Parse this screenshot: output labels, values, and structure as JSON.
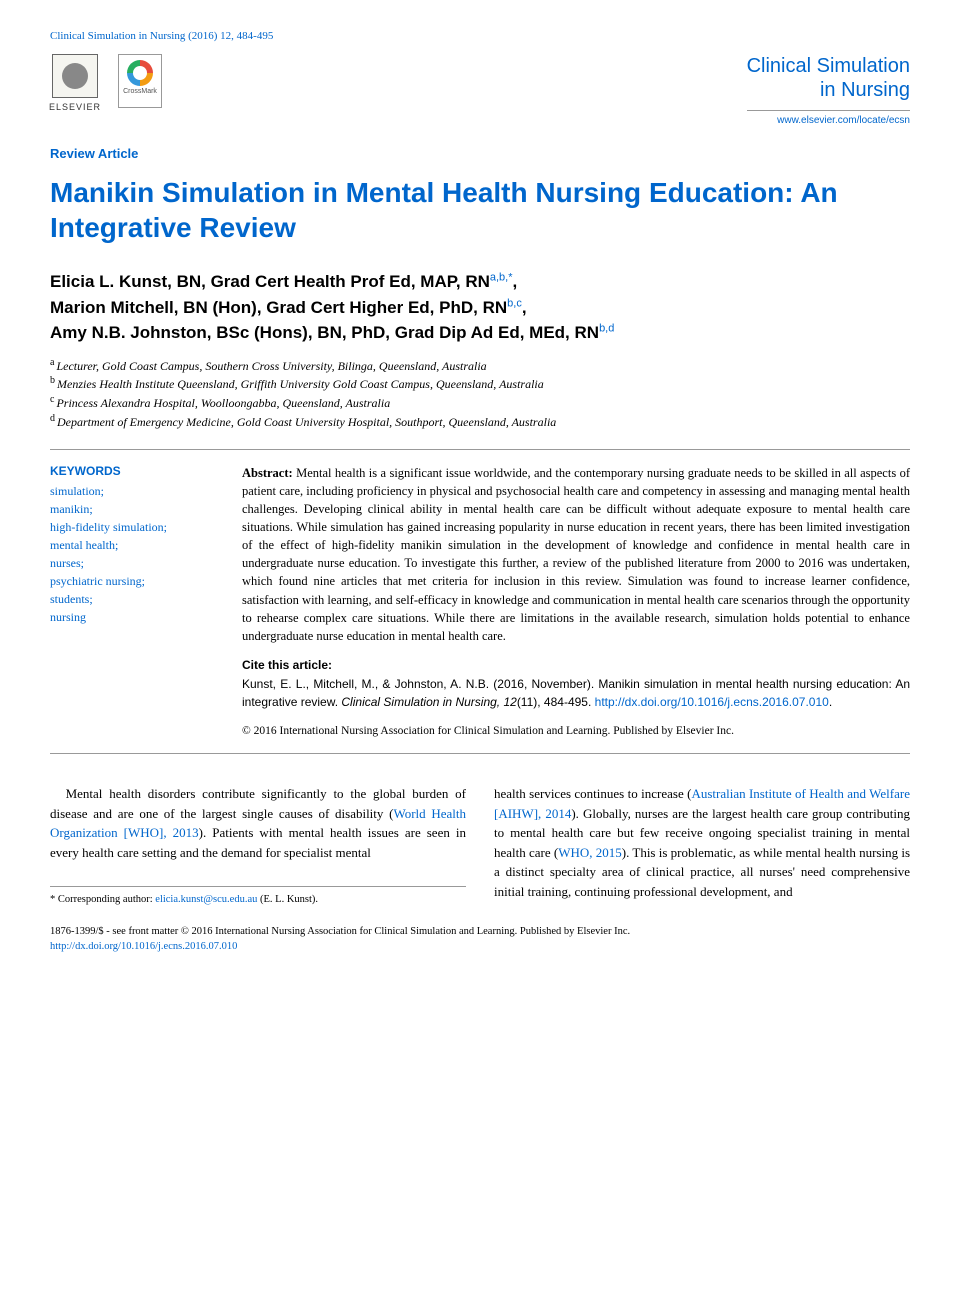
{
  "header": {
    "citation": "Clinical Simulation in Nursing (2016) 12, 484-495",
    "elsevier_label": "ELSEVIER",
    "crossmark_label": "CrossMark",
    "journal_title_line1": "Clinical Simulation",
    "journal_title_line2": "in Nursing",
    "journal_url": "www.elsevier.com/locate/ecsn"
  },
  "article": {
    "type": "Review Article",
    "title": "Manikin Simulation in Mental Health Nursing Education: An Integrative Review"
  },
  "authors": {
    "a1_name": "Elicia L. Kunst, BN, Grad Cert Health Prof Ed, MAP, RN",
    "a1_sup": "a,b,*",
    "a2_name": "Marion Mitchell, BN (Hon), Grad Cert Higher Ed, PhD, RN",
    "a2_sup": "b,c",
    "a3_name": "Amy N.B. Johnston, BSc (Hons), BN, PhD, Grad Dip Ad Ed, MEd, RN",
    "a3_sup": "b,d"
  },
  "affiliations": {
    "a": "Lecturer, Gold Coast Campus, Southern Cross University, Bilinga, Queensland, Australia",
    "b": "Menzies Health Institute Queensland, Griffith University Gold Coast Campus, Queensland, Australia",
    "c": "Princess Alexandra Hospital, Woolloongabba, Queensland, Australia",
    "d": "Department of Emergency Medicine, Gold Coast University Hospital, Southport, Queensland, Australia"
  },
  "keywords": {
    "heading": "KEYWORDS",
    "list": "simulation;\nmanikin;\nhigh-fidelity simulation;\nmental health;\nnurses;\npsychiatric nursing;\nstudents;\nnursing"
  },
  "abstract": {
    "label": "Abstract:",
    "text": "Mental health is a significant issue worldwide, and the contemporary nursing graduate needs to be skilled in all aspects of patient care, including proficiency in physical and psychosocial health care and competency in assessing and managing mental health challenges. Developing clinical ability in mental health care can be difficult without adequate exposure to mental health care situations. While simulation has gained increasing popularity in nurse education in recent years, there has been limited investigation of the effect of high-fidelity manikin simulation in the development of knowledge and confidence in mental health care in undergraduate nurse education. To investigate this further, a review of the published literature from 2000 to 2016 was undertaken, which found nine articles that met criteria for inclusion in this review. Simulation was found to increase learner confidence, satisfaction with learning, and self-efficacy in knowledge and communication in mental health care scenarios through the opportunity to rehearse complex care situations. While there are limitations in the available research, simulation holds potential to enhance undergraduate nurse education in mental health care."
  },
  "cite": {
    "heading": "Cite this article:",
    "body_plain": "Kunst, E. L., Mitchell, M., & Johnston, A. N.B. (2016, November). Manikin simulation in mental health nursing education: An integrative review. ",
    "journal_ital": "Clinical Simulation in Nursing, 12",
    "issue_pages": "(11), 484-495. ",
    "doi": "http://dx.doi.org/10.1016/j.ecns.2016.07.010",
    "doi_suffix": "."
  },
  "copyright": "© 2016 International Nursing Association for Clinical Simulation and Learning. Published by Elsevier Inc.",
  "body": {
    "col1_p1a": "Mental health disorders contribute significantly to the global burden of disease and are one of the largest single causes of disability (",
    "col1_ref1": "World Health Organization [WHO], 2013",
    "col1_p1b": "). Patients with mental health issues are seen in every health care setting and the demand for specialist mental",
    "col2_p1a": "health services continues to increase (",
    "col2_ref1": "Australian Institute of Health and Welfare [AIHW], 2014",
    "col2_p1b": "). Globally, nurses are the largest health care group contributing to mental health care but few receive ongoing specialist training in mental health care (",
    "col2_ref2": "WHO, 2015",
    "col2_p1c": "). This is problematic, as while mental health nursing is a distinct specialty area of clinical practice, all nurses' need comprehensive initial training, continuing professional development, and"
  },
  "footnote": {
    "star": "* Corresponding author: ",
    "email": "elicia.kunst@scu.edu.au",
    "name": " (E. L. Kunst)."
  },
  "footer": {
    "line1": "1876-1399/$ - see front matter © 2016 International Nursing Association for Clinical Simulation and Learning. Published by Elsevier Inc.",
    "doi": "http://dx.doi.org/10.1016/j.ecns.2016.07.010"
  },
  "colors": {
    "link": "#0066cc",
    "text": "#000000",
    "rule": "#999999"
  }
}
